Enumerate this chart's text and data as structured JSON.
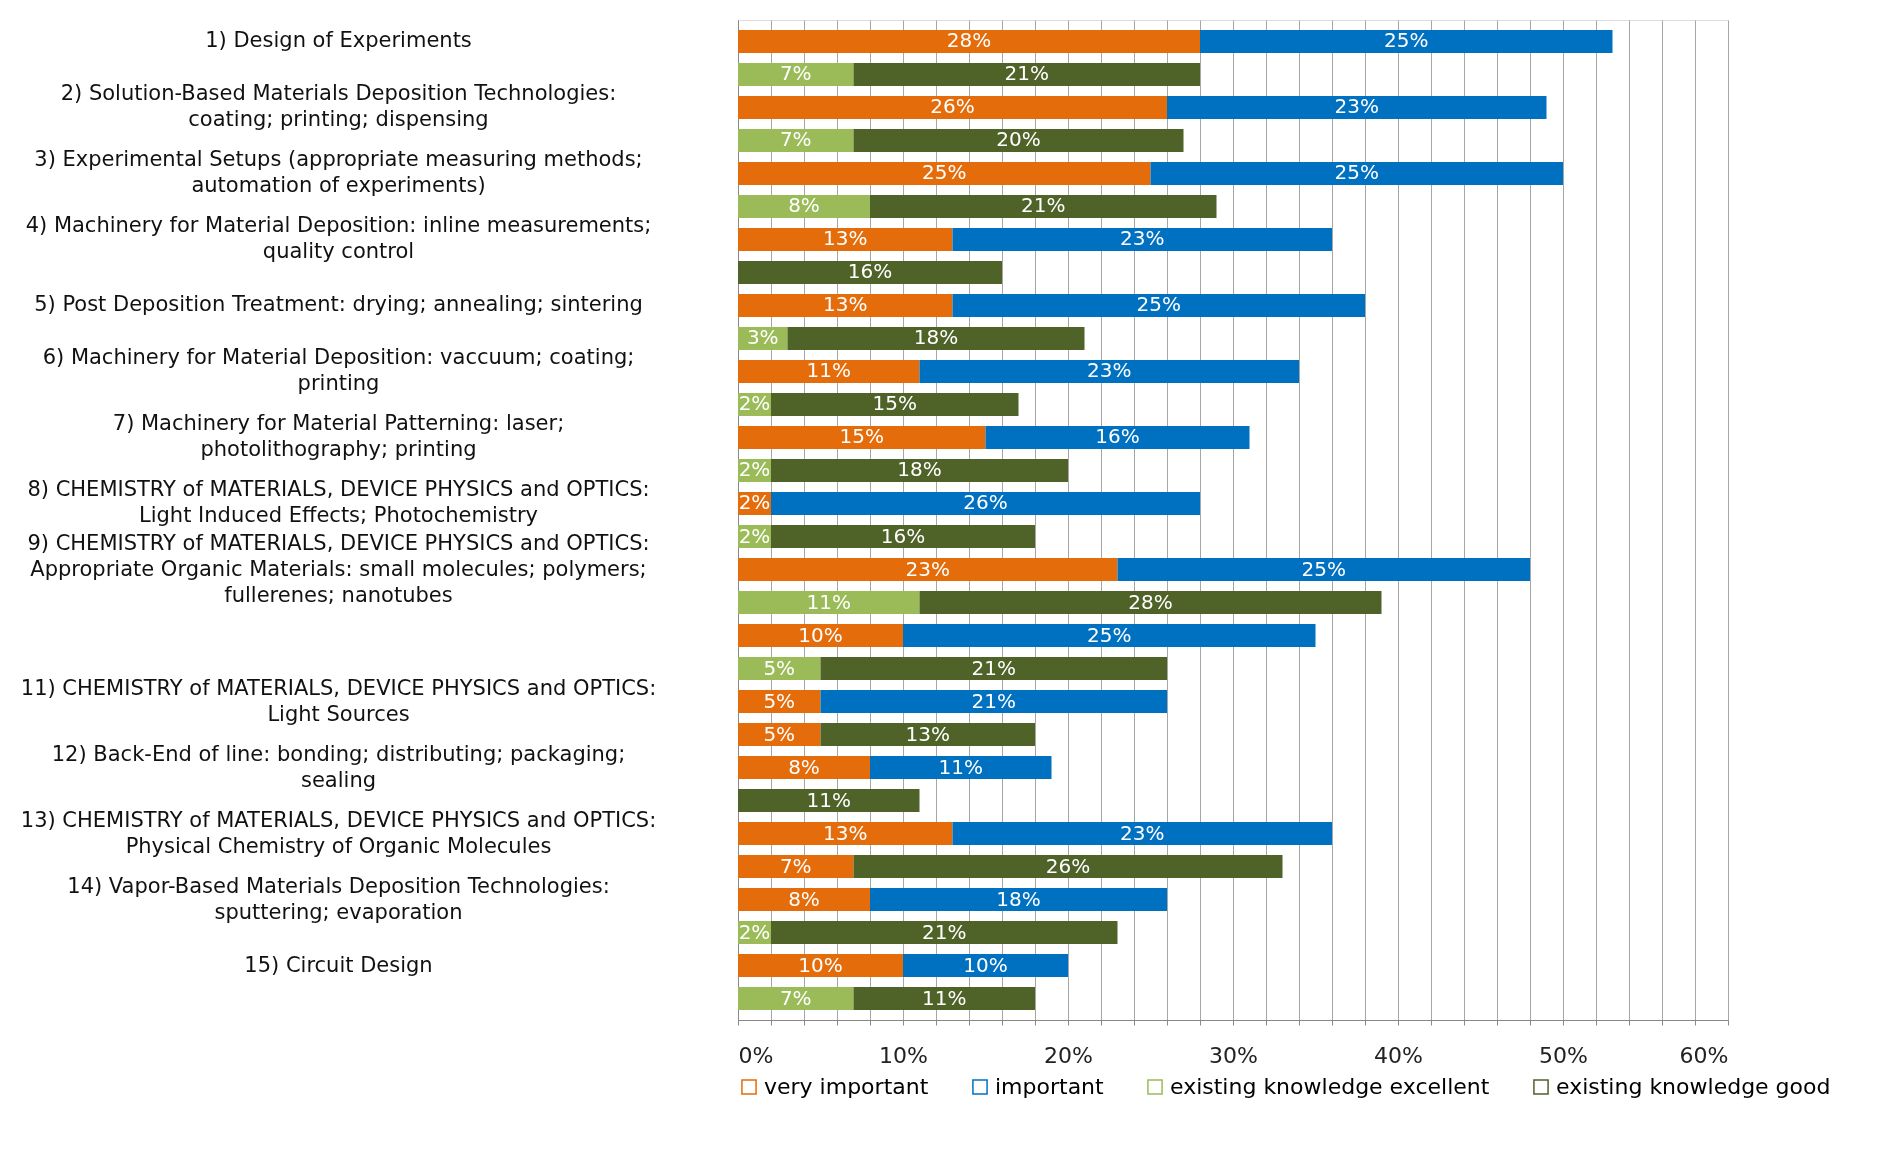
{
  "chart_data": {
    "type": "bar",
    "orientation": "horizontal",
    "stacked": true,
    "grid": "x",
    "legend": "bottom",
    "categories": [
      "1) Design of Experiments",
      null,
      "2) Solution-Based Materials Deposition Technologies: coating; printing; dispensing",
      null,
      "3) Experimental Setups (appropriate measuring methods; automation of experiments)",
      null,
      "4) Machinery for Material Deposition: inline measurements; quality control",
      null,
      "5) Post Deposition Treatment: drying; annealing; sintering",
      null,
      "6) Machinery for Material Deposition: vaccuum; coating; printing",
      null,
      "7) Machinery for Material Patterning: laser; photolithography; printing",
      null,
      "8) CHEMISTRY of MATERIALS, DEVICE PHYSICS and OPTICS: Light Induced Effects; Photochemistry",
      null,
      "9) CHEMISTRY of MATERIALS, DEVICE PHYSICS and OPTICS: Appropriate Organic Materials: small molecules; polymers; fullerenes; nanotubes",
      null,
      null,
      null,
      "11) CHEMISTRY of MATERIALS, DEVICE PHYSICS and OPTICS: Light Sources",
      null,
      "12) Back-End of line: bonding; distributing; packaging; sealing",
      null,
      "13) CHEMISTRY of MATERIALS, DEVICE PHYSICS and OPTICS: Physical Chemistry of Organic Molecules",
      null,
      "14) Vapor-Based Materials Deposition Technologies: sputtering; evaporation",
      null,
      "15) Circuit Design",
      null
    ],
    "series": [
      {
        "name": "very important",
        "color": "#e46c0a",
        "values": [
          28,
          null,
          26,
          null,
          25,
          null,
          13,
          null,
          13,
          null,
          11,
          null,
          15,
          null,
          2,
          null,
          23,
          null,
          10,
          null,
          5,
          null,
          8,
          null,
          13,
          null,
          8,
          null,
          10,
          null
        ],
        "value_labels": [
          "28%",
          null,
          "26%",
          null,
          "25%",
          null,
          "13%",
          null,
          "13%",
          null,
          "11%",
          null,
          "15%",
          null,
          "2%",
          null,
          "23%",
          null,
          "10%",
          null,
          "5%",
          null,
          "8%",
          null,
          "13%",
          null,
          "8%",
          null,
          "10%",
          null
        ]
      },
      {
        "name": "important",
        "color": "#0070c0",
        "values": [
          25,
          null,
          23,
          null,
          25,
          null,
          23,
          null,
          25,
          null,
          23,
          null,
          16,
          null,
          26,
          null,
          25,
          null,
          25,
          null,
          21,
          null,
          11,
          null,
          23,
          null,
          18,
          null,
          10,
          null
        ],
        "value_labels": [
          "25%",
          null,
          "23%",
          null,
          "25%",
          null,
          "23%",
          null,
          "25%",
          null,
          "23%",
          null,
          "16%",
          null,
          "26%",
          null,
          "25%",
          null,
          "25%",
          null,
          "21%",
          null,
          "11%",
          null,
          "23%",
          null,
          "18%",
          null,
          "10%",
          null
        ]
      },
      {
        "name": "existing knowledge excellent",
        "color": "#9bbb59",
        "colors": [
          null,
          "#9bbb59",
          null,
          "#9bbb59",
          null,
          "#9bbb59",
          null,
          "#9bbb59",
          null,
          "#9bbb59",
          null,
          "#9bbb59",
          null,
          "#9bbb59",
          null,
          "#9bbb59",
          null,
          "#9bbb59",
          null,
          "#9bbb59",
          null,
          "#e46c0a",
          null,
          "#9bbb59",
          null,
          "#e46c0a",
          null,
          "#9bbb59",
          null,
          "#9bbb59"
        ],
        "values": [
          null,
          7,
          null,
          7,
          null,
          8,
          null,
          0,
          null,
          3,
          null,
          2,
          null,
          2,
          null,
          2,
          null,
          11,
          null,
          5,
          null,
          5,
          null,
          0,
          null,
          7,
          null,
          2,
          null,
          7
        ],
        "value_labels": [
          null,
          "7%",
          null,
          "7%",
          null,
          "8%",
          null,
          null,
          null,
          "3%",
          null,
          "2%",
          null,
          "2%",
          null,
          "2%",
          null,
          "11%",
          null,
          "5%",
          null,
          "5%",
          null,
          null,
          null,
          "7%",
          null,
          "2%",
          null,
          "7%"
        ]
      },
      {
        "name": "existing knowledge good",
        "color": "#4f6228",
        "values": [
          null,
          21,
          null,
          20,
          null,
          21,
          null,
          16,
          null,
          18,
          null,
          15,
          null,
          18,
          null,
          16,
          null,
          28,
          null,
          21,
          null,
          13,
          null,
          11,
          null,
          26,
          null,
          21,
          null,
          11
        ],
        "value_labels": [
          null,
          "21%",
          null,
          "20%",
          null,
          "21%",
          null,
          "16%",
          null,
          "18%",
          null,
          "15%",
          null,
          "18%",
          null,
          "16%",
          null,
          "28%",
          null,
          "21%",
          null,
          "13%",
          null,
          "11%",
          null,
          "26%",
          null,
          "21%",
          null,
          "11%"
        ]
      }
    ],
    "xlim": [
      0,
      60
    ],
    "xticks": [
      {
        "value": 0,
        "label": "0%"
      },
      {
        "value": 2,
        "label": null
      },
      {
        "value": 4,
        "label": null
      },
      {
        "value": 6,
        "label": null
      },
      {
        "value": 8,
        "label": null
      },
      {
        "value": 10,
        "label": "10%"
      },
      {
        "value": 12,
        "label": null
      },
      {
        "value": 14,
        "label": null
      },
      {
        "value": 16,
        "label": null
      },
      {
        "value": 18,
        "label": null
      },
      {
        "value": 20,
        "label": "20%"
      },
      {
        "value": 22,
        "label": null
      },
      {
        "value": 24,
        "label": null
      },
      {
        "value": 26,
        "label": null
      },
      {
        "value": 28,
        "label": null
      },
      {
        "value": 30,
        "label": "30%"
      },
      {
        "value": 32,
        "label": null
      },
      {
        "value": 34,
        "label": null
      },
      {
        "value": 36,
        "label": null
      },
      {
        "value": 38,
        "label": null
      },
      {
        "value": 40,
        "label": "40%"
      },
      {
        "value": 42,
        "label": null
      },
      {
        "value": 44,
        "label": null
      },
      {
        "value": 46,
        "label": null
      },
      {
        "value": 48,
        "label": null
      },
      {
        "value": 50,
        "label": "50%"
      },
      {
        "value": 52,
        "label": null
      },
      {
        "value": 54,
        "label": null
      },
      {
        "value": 56,
        "label": null
      },
      {
        "value": 58,
        "label": null
      },
      {
        "value": 60,
        "label": "60%"
      }
    ]
  }
}
